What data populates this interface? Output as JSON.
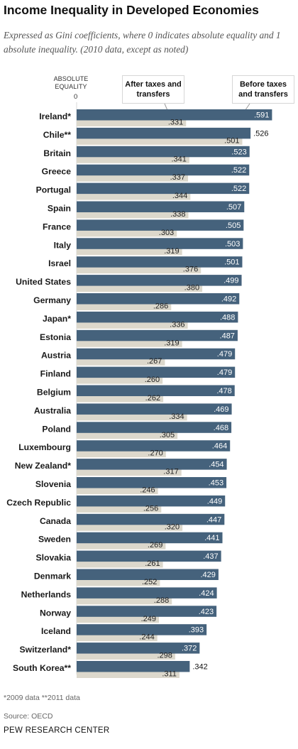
{
  "chart_data": {
    "type": "bar",
    "title": "Income Inequality in Developed Economies",
    "subtitle": "Expressed as Gini coefficients, where 0 indicates absolute equality and 1 absolute inequality. (2010 data, except as noted)",
    "axis_title": "ABSOLUTE EQUALITY",
    "axis_zero_label": "0",
    "orientation": "horizontal",
    "categories": [
      "Ireland*",
      "Chile**",
      "Britain",
      "Greece",
      "Portugal",
      "Spain",
      "France",
      "Italy",
      "Israel",
      "United States",
      "Germany",
      "Japan*",
      "Estonia",
      "Austria",
      "Finland",
      "Belgium",
      "Australia",
      "Poland",
      "Luxembourg",
      "New Zealand*",
      "Slovenia",
      "Czech Republic",
      "Canada",
      "Sweden",
      "Slovakia",
      "Denmark",
      "Netherlands",
      "Norway",
      "Iceland",
      "Switzerland*",
      "South Korea**"
    ],
    "series": [
      {
        "name": "Before taxes and transfers",
        "color": "#45627c",
        "values": [
          0.591,
          0.526,
          0.523,
          0.522,
          0.522,
          0.507,
          0.505,
          0.503,
          0.501,
          0.499,
          0.492,
          0.488,
          0.487,
          0.479,
          0.479,
          0.478,
          0.469,
          0.468,
          0.464,
          0.454,
          0.453,
          0.449,
          0.447,
          0.441,
          0.437,
          0.429,
          0.424,
          0.423,
          0.393,
          0.372,
          0.342
        ],
        "labels": [
          ".591",
          ".526",
          ".523",
          ".522",
          ".522",
          ".507",
          ".505",
          ".503",
          ".501",
          ".499",
          ".492",
          ".488",
          ".487",
          ".479",
          ".479",
          ".478",
          ".469",
          ".468",
          ".464",
          ".454",
          ".453",
          ".449",
          ".447",
          ".441",
          ".437",
          ".429",
          ".424",
          ".423",
          ".393",
          ".372",
          ".342"
        ]
      },
      {
        "name": "After taxes and transfers",
        "color": "#dcd8cc",
        "values": [
          0.331,
          0.501,
          0.341,
          0.337,
          0.344,
          0.338,
          0.303,
          0.319,
          0.376,
          0.38,
          0.286,
          0.336,
          0.319,
          0.267,
          0.26,
          0.262,
          0.334,
          0.305,
          0.27,
          0.317,
          0.246,
          0.256,
          0.32,
          0.269,
          0.261,
          0.252,
          0.288,
          0.249,
          0.244,
          0.298,
          0.311
        ],
        "labels": [
          ".331",
          ".501",
          ".341",
          ".337",
          ".344",
          ".338",
          ".303",
          ".319",
          ".376",
          ".380",
          ".286",
          ".336",
          ".319",
          ".267",
          ".260",
          ".262",
          ".334",
          ".305",
          ".270",
          ".317",
          ".246",
          ".256",
          ".320",
          ".269",
          ".261",
          ".252",
          ".288",
          ".249",
          ".244",
          ".298",
          ".311"
        ]
      }
    ],
    "callouts": {
      "after": "After taxes and transfers",
      "before": "Before taxes and transfers"
    },
    "grid": false,
    "legend": "callouts at top"
  },
  "footnote": "*2009 data   **2011 data",
  "source": "Source: OECD",
  "brand": "PEW RESEARCH CENTER",
  "colors": {
    "before": "#45627c",
    "after": "#dcd8cc",
    "before_label": "#ffffff",
    "after_label": "#222222"
  }
}
